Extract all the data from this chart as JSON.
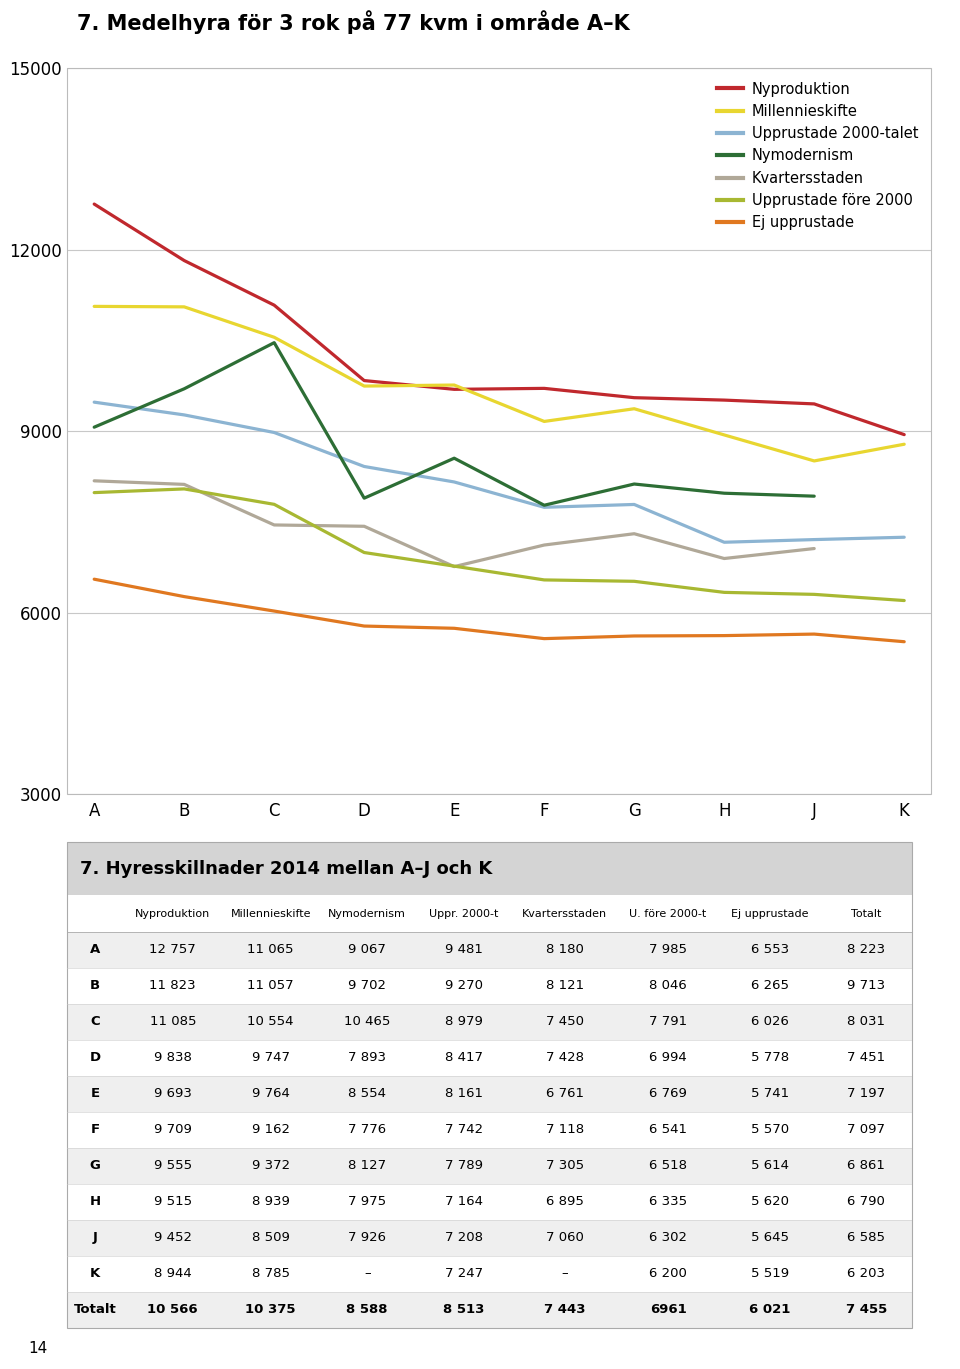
{
  "chart_title": "7. Medelhyra för 3 rok på 77 kvm i område A–K",
  "table_title": "7. Hyresskillnader 2014 mellan A–J och K",
  "categories": [
    "A",
    "B",
    "C",
    "D",
    "E",
    "F",
    "G",
    "H",
    "J",
    "K"
  ],
  "ylim": [
    3000,
    15000
  ],
  "yticks": [
    3000,
    6000,
    9000,
    12000,
    15000
  ],
  "series_order": [
    "Nyproduktion",
    "Millennieskifte",
    "Upprustade 2000-talet",
    "Nymodernism",
    "Kvartersstaden",
    "Upprustade före 2000",
    "Ej upprustade"
  ],
  "series": {
    "Nyproduktion": {
      "color": "#c0282d",
      "values": [
        12757,
        11823,
        11085,
        9838,
        9693,
        9709,
        9555,
        9515,
        9452,
        8944
      ]
    },
    "Millennieskifte": {
      "color": "#e8d630",
      "values": [
        11065,
        11057,
        10554,
        9747,
        9764,
        9162,
        9372,
        8939,
        8509,
        8785
      ]
    },
    "Upprustade 2000-talet": {
      "color": "#8cb4d2",
      "values": [
        9481,
        9270,
        8979,
        8417,
        8161,
        7742,
        7789,
        7164,
        7208,
        7247
      ]
    },
    "Nymodernism": {
      "color": "#2d6e35",
      "values": [
        9067,
        9702,
        10465,
        7893,
        8554,
        7776,
        8127,
        7975,
        7926,
        null
      ]
    },
    "Kvartersstaden": {
      "color": "#b0a898",
      "values": [
        8180,
        8121,
        7450,
        7428,
        6761,
        7118,
        7305,
        6895,
        7060,
        null
      ]
    },
    "Upprustade före 2000": {
      "color": "#a8b832",
      "values": [
        7985,
        8046,
        7791,
        6994,
        6769,
        6541,
        6518,
        6335,
        6302,
        6200
      ]
    },
    "Ej upprustade": {
      "color": "#e07820",
      "values": [
        6553,
        6265,
        6026,
        5778,
        5741,
        5570,
        5614,
        5620,
        5645,
        5519
      ]
    }
  },
  "table_columns": [
    "Nyproduktion",
    "Millennieskifte",
    "Nymodernism",
    "Uppr. 2000-t",
    "Kvartersstaden",
    "U. före 2000-t",
    "Ej upprustade",
    "Totalt"
  ],
  "table_rows": [
    [
      "A",
      "12 757",
      "11 065",
      "9 067",
      "9 481",
      "8 180",
      "7 985",
      "6 553",
      "8 223"
    ],
    [
      "B",
      "11 823",
      "11 057",
      "9 702",
      "9 270",
      "8 121",
      "8 046",
      "6 265",
      "9 713"
    ],
    [
      "C",
      "11 085",
      "10 554",
      "10 465",
      "8 979",
      "7 450",
      "7 791",
      "6 026",
      "8 031"
    ],
    [
      "D",
      "9 838",
      "9 747",
      "7 893",
      "8 417",
      "7 428",
      "6 994",
      "5 778",
      "7 451"
    ],
    [
      "E",
      "9 693",
      "9 764",
      "8 554",
      "8 161",
      "6 761",
      "6 769",
      "5 741",
      "7 197"
    ],
    [
      "F",
      "9 709",
      "9 162",
      "7 776",
      "7 742",
      "7 118",
      "6 541",
      "5 570",
      "7 097"
    ],
    [
      "G",
      "9 555",
      "9 372",
      "8 127",
      "7 789",
      "7 305",
      "6 518",
      "5 614",
      "6 861"
    ],
    [
      "H",
      "9 515",
      "8 939",
      "7 975",
      "7 164",
      "6 895",
      "6 335",
      "5 620",
      "6 790"
    ],
    [
      "J",
      "9 452",
      "8 509",
      "7 926",
      "7 208",
      "7 060",
      "6 302",
      "5 645",
      "6 585"
    ],
    [
      "K",
      "8 944",
      "8 785",
      "–",
      "7 247",
      "–",
      "6 200",
      "5 519",
      "6 203"
    ],
    [
      "Totalt",
      "10 566",
      "10 375",
      "8 588",
      "8 513",
      "7 443",
      "6961",
      "6 021",
      "7 455"
    ]
  ],
  "table_header_bg": "#ffffff",
  "table_title_bg": "#d4d4d4",
  "table_row_bg_light": "#efefef",
  "table_row_bg_white": "#ffffff",
  "bg_color": "#f5f5f5"
}
